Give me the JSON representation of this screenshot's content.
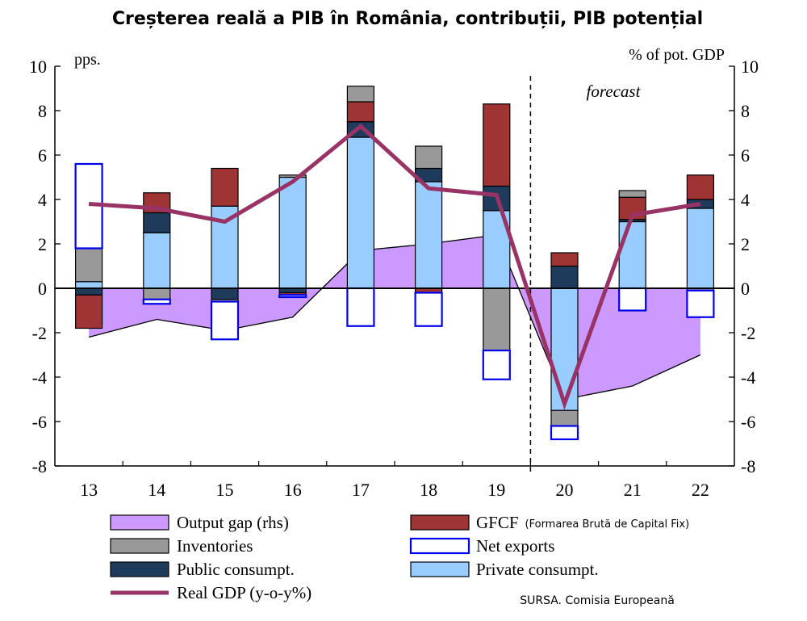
{
  "chart_data": {
    "type": "bar",
    "title": "Creșterea reală a PIB în România, contribuții, PIB potențial",
    "left_axis_label": "pps.",
    "right_axis_label": "% of pot. GDP",
    "annotation": "forecast",
    "source": "SURSA. Comisia Europeană",
    "ylim": [
      -8,
      10
    ],
    "yticks": [
      "-8",
      "-6",
      "-4",
      "-2",
      "0",
      "2",
      "4",
      "6",
      "8",
      "10"
    ],
    "categories": [
      "13",
      "14",
      "15",
      "16",
      "17",
      "18",
      "19",
      "20",
      "21",
      "22"
    ],
    "forecast_start_after": "19",
    "colors": {
      "output_gap": "#cc99ff",
      "inventories": "#999999",
      "public": "#1f3b5c",
      "gfcf": "#9e3434",
      "net_exports_edge": "#0000ee",
      "private": "#99ccff",
      "real_gdp": "#993366"
    },
    "series": [
      {
        "key": "private",
        "name": "Private consumpt.",
        "values": [
          0.3,
          2.5,
          3.7,
          5.0,
          6.8,
          4.8,
          3.5,
          -5.5,
          3.0,
          3.6
        ]
      },
      {
        "key": "public",
        "name": "Public consumpt.",
        "values": [
          -0.3,
          0.9,
          -0.5,
          -0.2,
          0.7,
          0.6,
          1.1,
          1.0,
          0.1,
          0.4
        ]
      },
      {
        "key": "gfcf",
        "name": "GFCF",
        "name_note": "(Formarea Brută de Capital Fix)",
        "values": [
          -1.5,
          0.9,
          1.7,
          -0.1,
          0.9,
          -0.2,
          3.7,
          0.6,
          1.0,
          1.1
        ]
      },
      {
        "key": "inventories",
        "name": "Inventories",
        "values": [
          1.5,
          -0.5,
          -0.1,
          0.1,
          0.7,
          1.0,
          -2.8,
          -0.7,
          0.3,
          -0.1
        ]
      },
      {
        "key": "net_exports",
        "name": "Net exports",
        "values": [
          3.8,
          -0.2,
          -1.7,
          -0.1,
          -1.7,
          -1.5,
          -1.3,
          -0.6,
          -1.0,
          -1.2
        ]
      }
    ],
    "real_gdp": {
      "name": "Real GDP (y-o-y%)",
      "values": [
        3.8,
        3.6,
        3.0,
        4.8,
        7.3,
        4.5,
        4.2,
        -5.2,
        3.3,
        3.8
      ]
    },
    "output_gap": {
      "name": "Output gap (rhs)",
      "values": [
        -2.2,
        -1.4,
        -1.9,
        -1.3,
        1.7,
        2.0,
        2.4,
        -5.0,
        -4.4,
        -3.0
      ]
    },
    "legend": [
      {
        "key": "output_gap",
        "label": "Output gap (rhs)"
      },
      {
        "key": "inventories",
        "label": "Inventories"
      },
      {
        "key": "public",
        "label": "Public consumpt."
      },
      {
        "key": "real_gdp",
        "label": "Real GDP (y-o-y%)"
      },
      {
        "key": "gfcf",
        "label": "GFCF",
        "note": "(Formarea Brută de Capital Fix)"
      },
      {
        "key": "net_exports",
        "label": "Net exports"
      },
      {
        "key": "private",
        "label": "Private consumpt."
      }
    ]
  }
}
